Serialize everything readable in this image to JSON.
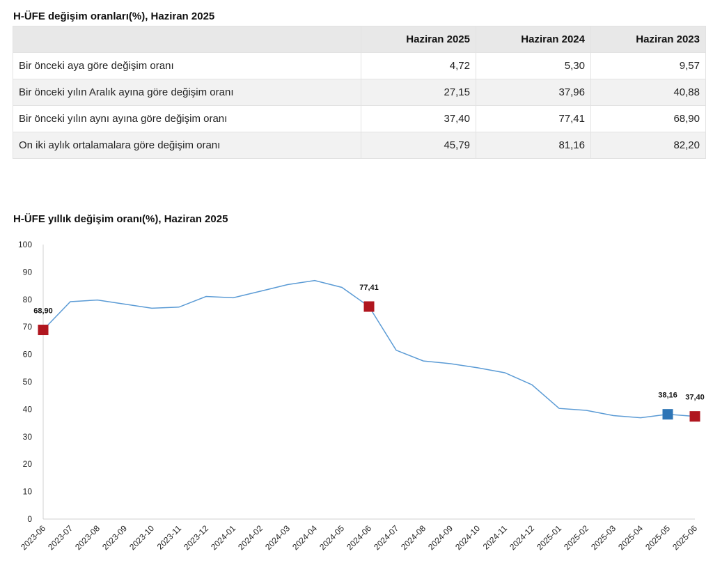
{
  "table": {
    "title": "H-ÜFE değişim oranları(%), Haziran 2025",
    "columns": [
      "",
      "Haziran 2025",
      "Haziran 2024",
      "Haziran 2023"
    ],
    "rows": [
      {
        "label": "Bir önceki aya göre değişim oranı",
        "values": [
          "4,72",
          "5,30",
          "9,57"
        ]
      },
      {
        "label": "Bir önceki yılın Aralık ayına göre değişim oranı",
        "values": [
          "27,15",
          "37,96",
          "40,88"
        ]
      },
      {
        "label": "Bir önceki yılın aynı ayına göre değişim oranı",
        "values": [
          "37,40",
          "77,41",
          "68,90"
        ]
      },
      {
        "label": "On iki aylık ortalamalara göre değişim oranı",
        "values": [
          "45,79",
          "81,16",
          "82,20"
        ]
      }
    ]
  },
  "chart_data": {
    "type": "line",
    "title": "H-ÜFE yıllık değişim oranı(%), Haziran 2025",
    "xlabel": "",
    "ylabel": "",
    "ylim": [
      0,
      100
    ],
    "yticks": [
      0,
      10,
      20,
      30,
      40,
      50,
      60,
      70,
      80,
      90,
      100
    ],
    "grid": false,
    "x": [
      "2023-06",
      "2023-07",
      "2023-08",
      "2023-09",
      "2023-10",
      "2023-11",
      "2023-12",
      "2024-01",
      "2024-02",
      "2024-03",
      "2024-04",
      "2024-05",
      "2024-06",
      "2024-07",
      "2024-08",
      "2024-09",
      "2024-10",
      "2024-11",
      "2024-12",
      "2025-01",
      "2025-02",
      "2025-03",
      "2025-04",
      "2025-05",
      "2025-06"
    ],
    "series": [
      {
        "values": [
          68.9,
          79.2,
          79.8,
          78.3,
          76.8,
          77.2,
          81.1,
          80.6,
          83.0,
          85.4,
          86.9,
          84.4,
          77.41,
          61.5,
          57.6,
          56.6,
          55.1,
          53.3,
          48.9,
          40.3,
          39.6,
          37.7,
          36.9,
          38.16,
          37.4
        ],
        "color": "#5b9bd5"
      }
    ],
    "highlights": [
      {
        "index": 0,
        "label": "68,90",
        "color": "#b0161f"
      },
      {
        "index": 12,
        "label": "77,41",
        "color": "#b0161f"
      },
      {
        "index": 23,
        "label": "38,16",
        "color": "#2e75b6"
      },
      {
        "index": 24,
        "label": "37,40",
        "color": "#b0161f"
      }
    ]
  }
}
